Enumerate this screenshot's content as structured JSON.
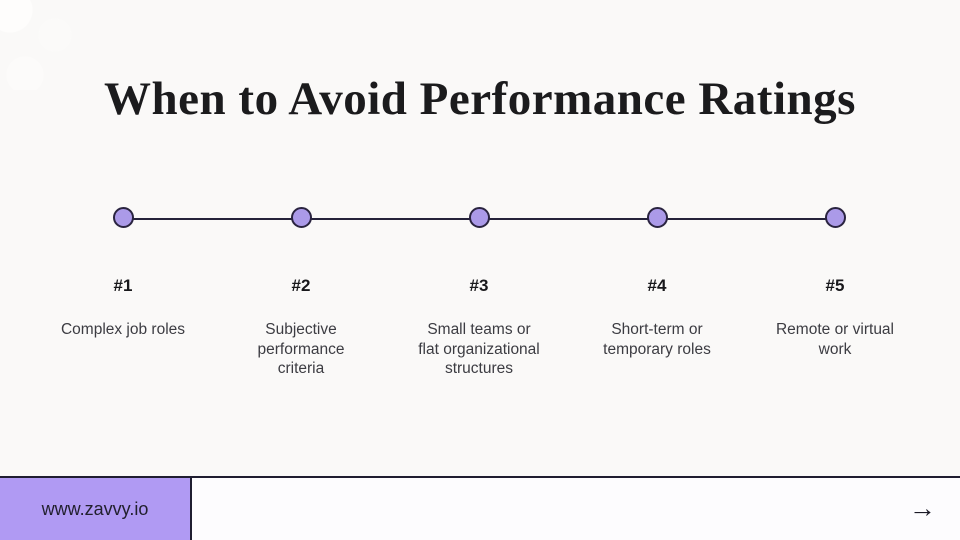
{
  "title": "When to Avoid Performance Ratings",
  "colors": {
    "background": "#faf9f8",
    "accent_dot": "#ab9ae8",
    "accent_footer": "#b09af3",
    "line_dark": "#25223a",
    "title_text": "#1b1b1d",
    "body_text": "#3c3c42"
  },
  "timeline": {
    "items": [
      {
        "number": "#1",
        "lines": [
          "Complex job roles"
        ]
      },
      {
        "number": "#2",
        "lines": [
          "Subjective",
          "performance",
          "criteria"
        ]
      },
      {
        "number": "#3",
        "lines": [
          "Small teams or",
          "flat organizational",
          "structures"
        ]
      },
      {
        "number": "#4",
        "lines": [
          "Short-term or",
          "temporary roles"
        ]
      },
      {
        "number": "#5",
        "lines": [
          "Remote or virtual",
          "work"
        ]
      }
    ]
  },
  "footer": {
    "website": "www.zavvy.io",
    "arrow_glyph": "→"
  }
}
